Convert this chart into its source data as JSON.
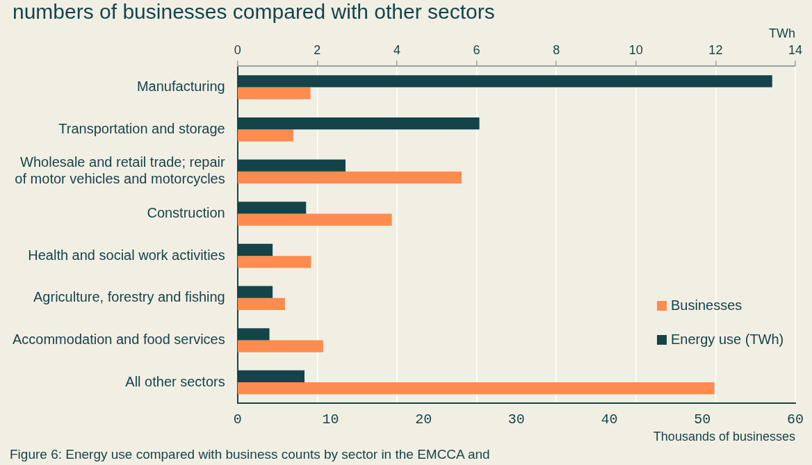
{
  "chart_data": {
    "type": "bar",
    "orientation": "horizontal",
    "title": "numbers of businesses compared with other sectors",
    "categories": [
      "Manufacturing",
      "Transportation and storage",
      "Wholesale and retail trade; repair of motor vehicles and motorcycles",
      "Construction",
      "Health and social work activities",
      "Agriculture, forestry and fishing",
      "Accommodation and food services",
      "All other sectors"
    ],
    "series": [
      {
        "name": "Energy use (TWh)",
        "color": "#15434a",
        "axis": "x2",
        "values": [
          13.42,
          6.07,
          2.71,
          1.72,
          0.88,
          0.88,
          0.8,
          1.68
        ]
      },
      {
        "name": "Businesses",
        "color": "#ff8b4f",
        "values": [
          7.84,
          6.0,
          24.1,
          16.6,
          7.9,
          5.1,
          9.2,
          51.3
        ]
      }
    ],
    "xlabel": "Thousands of businesses",
    "x2label": "TWh",
    "xlim": [
      0,
      60
    ],
    "xticks": [
      0,
      10,
      20,
      30,
      40,
      50,
      60
    ],
    "x2lim": [
      0,
      14
    ],
    "x2ticks": [
      0,
      2,
      4,
      6,
      8,
      10,
      12,
      14
    ],
    "grid": "x",
    "legend": "right",
    "annotations": [
      "Figure 6: Energy use compared with business counts by sector in the EMCCA and"
    ]
  }
}
